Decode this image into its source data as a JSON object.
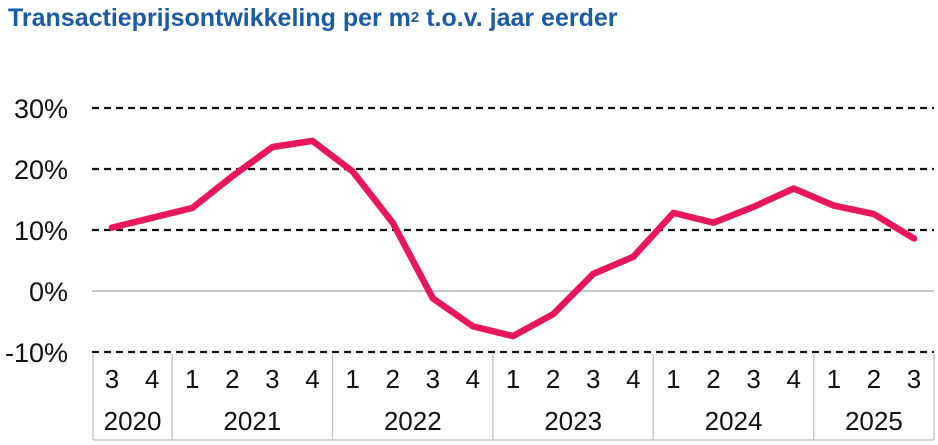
{
  "chart_data": {
    "type": "line",
    "title_main": "Transactieprijsontwikkeling per m",
    "title_sup": "2",
    "title_rest": " t.o.v. jaar eerder",
    "ylim": [
      -10,
      30
    ],
    "yticks": [
      "-10%",
      "0%",
      "10%",
      "20%",
      "30%"
    ],
    "ytick_values": [
      -10,
      0,
      10,
      20,
      30
    ],
    "grid": "dashed",
    "categories": [
      "3",
      "4",
      "1",
      "2",
      "3",
      "4",
      "1",
      "2",
      "3",
      "4",
      "1",
      "2",
      "3",
      "4",
      "1",
      "2",
      "3",
      "4",
      "1",
      "2",
      "3"
    ],
    "years": [
      {
        "label": "2020",
        "count": 2
      },
      {
        "label": "2021",
        "count": 4
      },
      {
        "label": "2022",
        "count": 4
      },
      {
        "label": "2023",
        "count": 4
      },
      {
        "label": "2024",
        "count": 4
      },
      {
        "label": "2025",
        "count": 3
      }
    ],
    "series": [
      {
        "color": "#e8175d",
        "values": [
          10.4,
          12.0,
          13.6,
          18.8,
          23.6,
          24.6,
          19.6,
          11.2,
          -1.2,
          -5.8,
          -7.4,
          -3.8,
          2.8,
          5.6,
          12.8,
          11.2,
          13.8,
          16.8,
          14.0,
          12.6,
          8.6
        ]
      }
    ]
  }
}
